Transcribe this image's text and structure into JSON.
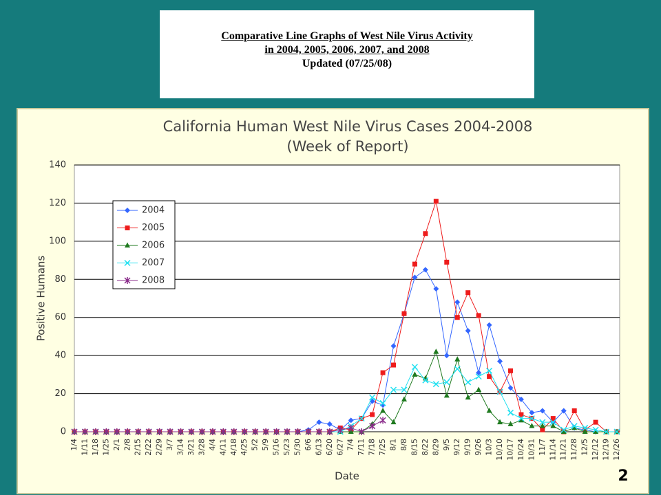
{
  "header": {
    "title_line1": "Comparative Line Graphs of West Nile Virus Activity",
    "title_line2": "in 2004, 2005, 2006, 2007, and 2008",
    "updated": "Updated (07/25/08)"
  },
  "slide_number": "2",
  "chart_data": {
    "type": "line",
    "title": "California Human West Nile Virus Cases 2004-2008",
    "subtitle": "(Week of Report)",
    "x_label": "Date",
    "y_label": "Positive Humans",
    "categories": [
      "1/4",
      "1/11",
      "1/18",
      "1/25",
      "2/1",
      "2/8",
      "2/15",
      "2/22",
      "2/29",
      "3/7",
      "3/14",
      "3/21",
      "3/28",
      "4/4",
      "4/11",
      "4/18",
      "4/25",
      "5/2",
      "5/9",
      "5/16",
      "5/23",
      "5/30",
      "6/6",
      "6/13",
      "6/20",
      "6/27",
      "7/4",
      "7/11",
      "7/18",
      "7/25",
      "8/1",
      "8/8",
      "8/15",
      "8/22",
      "8/29",
      "9/5",
      "9/12",
      "9/19",
      "9/26",
      "10/3",
      "10/10",
      "10/17",
      "10/24",
      "10/31",
      "11/7",
      "11/14",
      "11/21",
      "11/28",
      "12/5",
      "12/12",
      "12/19",
      "12/26"
    ],
    "ylim": [
      0,
      140
    ],
    "yticks": [
      0,
      20,
      40,
      60,
      80,
      100,
      120,
      140
    ],
    "grid": true,
    "series": [
      {
        "name": "2004",
        "color": "#3366ff",
        "marker": "diamond",
        "values": [
          0,
          0,
          0,
          0,
          0,
          0,
          0,
          0,
          0,
          0,
          0,
          0,
          0,
          0,
          0,
          0,
          0,
          0,
          0,
          0,
          0,
          0,
          1,
          5,
          4,
          1,
          6,
          7,
          16,
          14,
          45,
          62,
          81,
          85,
          75,
          40,
          68,
          53,
          31,
          56,
          37,
          23,
          17,
          10,
          11,
          5,
          11,
          2,
          1,
          0,
          0,
          0
        ]
      },
      {
        "name": "2005",
        "color": "#ee1c1c",
        "marker": "square",
        "values": [
          0,
          0,
          0,
          0,
          0,
          0,
          0,
          0,
          0,
          0,
          0,
          0,
          0,
          0,
          0,
          0,
          0,
          0,
          0,
          0,
          0,
          0,
          0,
          0,
          0,
          2,
          1,
          7,
          9,
          31,
          35,
          62,
          88,
          104,
          121,
          89,
          60,
          73,
          61,
          29,
          21,
          32,
          9,
          7,
          1,
          7,
          0,
          11,
          1,
          5,
          0,
          0
        ]
      },
      {
        "name": "2006",
        "color": "#1f7a1f",
        "marker": "triangle",
        "values": [
          0,
          0,
          0,
          0,
          0,
          0,
          0,
          0,
          0,
          0,
          0,
          0,
          0,
          0,
          0,
          0,
          0,
          0,
          0,
          0,
          0,
          0,
          0,
          0,
          0,
          0,
          0,
          0,
          4,
          11,
          5,
          17,
          30,
          28,
          42,
          19,
          38,
          18,
          22,
          11,
          5,
          4,
          6,
          3,
          3,
          3,
          0,
          2,
          0,
          0,
          0,
          0
        ]
      },
      {
        "name": "2007",
        "color": "#22e0f0",
        "marker": "x",
        "values": [
          0,
          0,
          0,
          0,
          0,
          0,
          0,
          0,
          0,
          0,
          0,
          0,
          0,
          0,
          0,
          0,
          0,
          0,
          0,
          0,
          0,
          0,
          0,
          0,
          0,
          0,
          3,
          7,
          18,
          15,
          22,
          22,
          34,
          27,
          25,
          26,
          33,
          26,
          29,
          32,
          21,
          10,
          7,
          7,
          5,
          5,
          1,
          3,
          2,
          1,
          0,
          0
        ]
      },
      {
        "name": "2008",
        "color": "#8a2b8a",
        "marker": "star",
        "values": [
          0,
          0,
          0,
          0,
          0,
          0,
          0,
          0,
          0,
          0,
          0,
          0,
          0,
          0,
          0,
          0,
          0,
          0,
          0,
          0,
          0,
          0,
          0,
          0,
          0,
          1,
          2,
          0,
          3,
          6,
          null,
          null,
          null,
          null,
          null,
          null,
          null,
          null,
          null,
          null,
          null,
          null,
          null,
          null,
          null,
          null,
          null,
          null,
          null,
          null,
          null,
          null
        ]
      }
    ]
  }
}
